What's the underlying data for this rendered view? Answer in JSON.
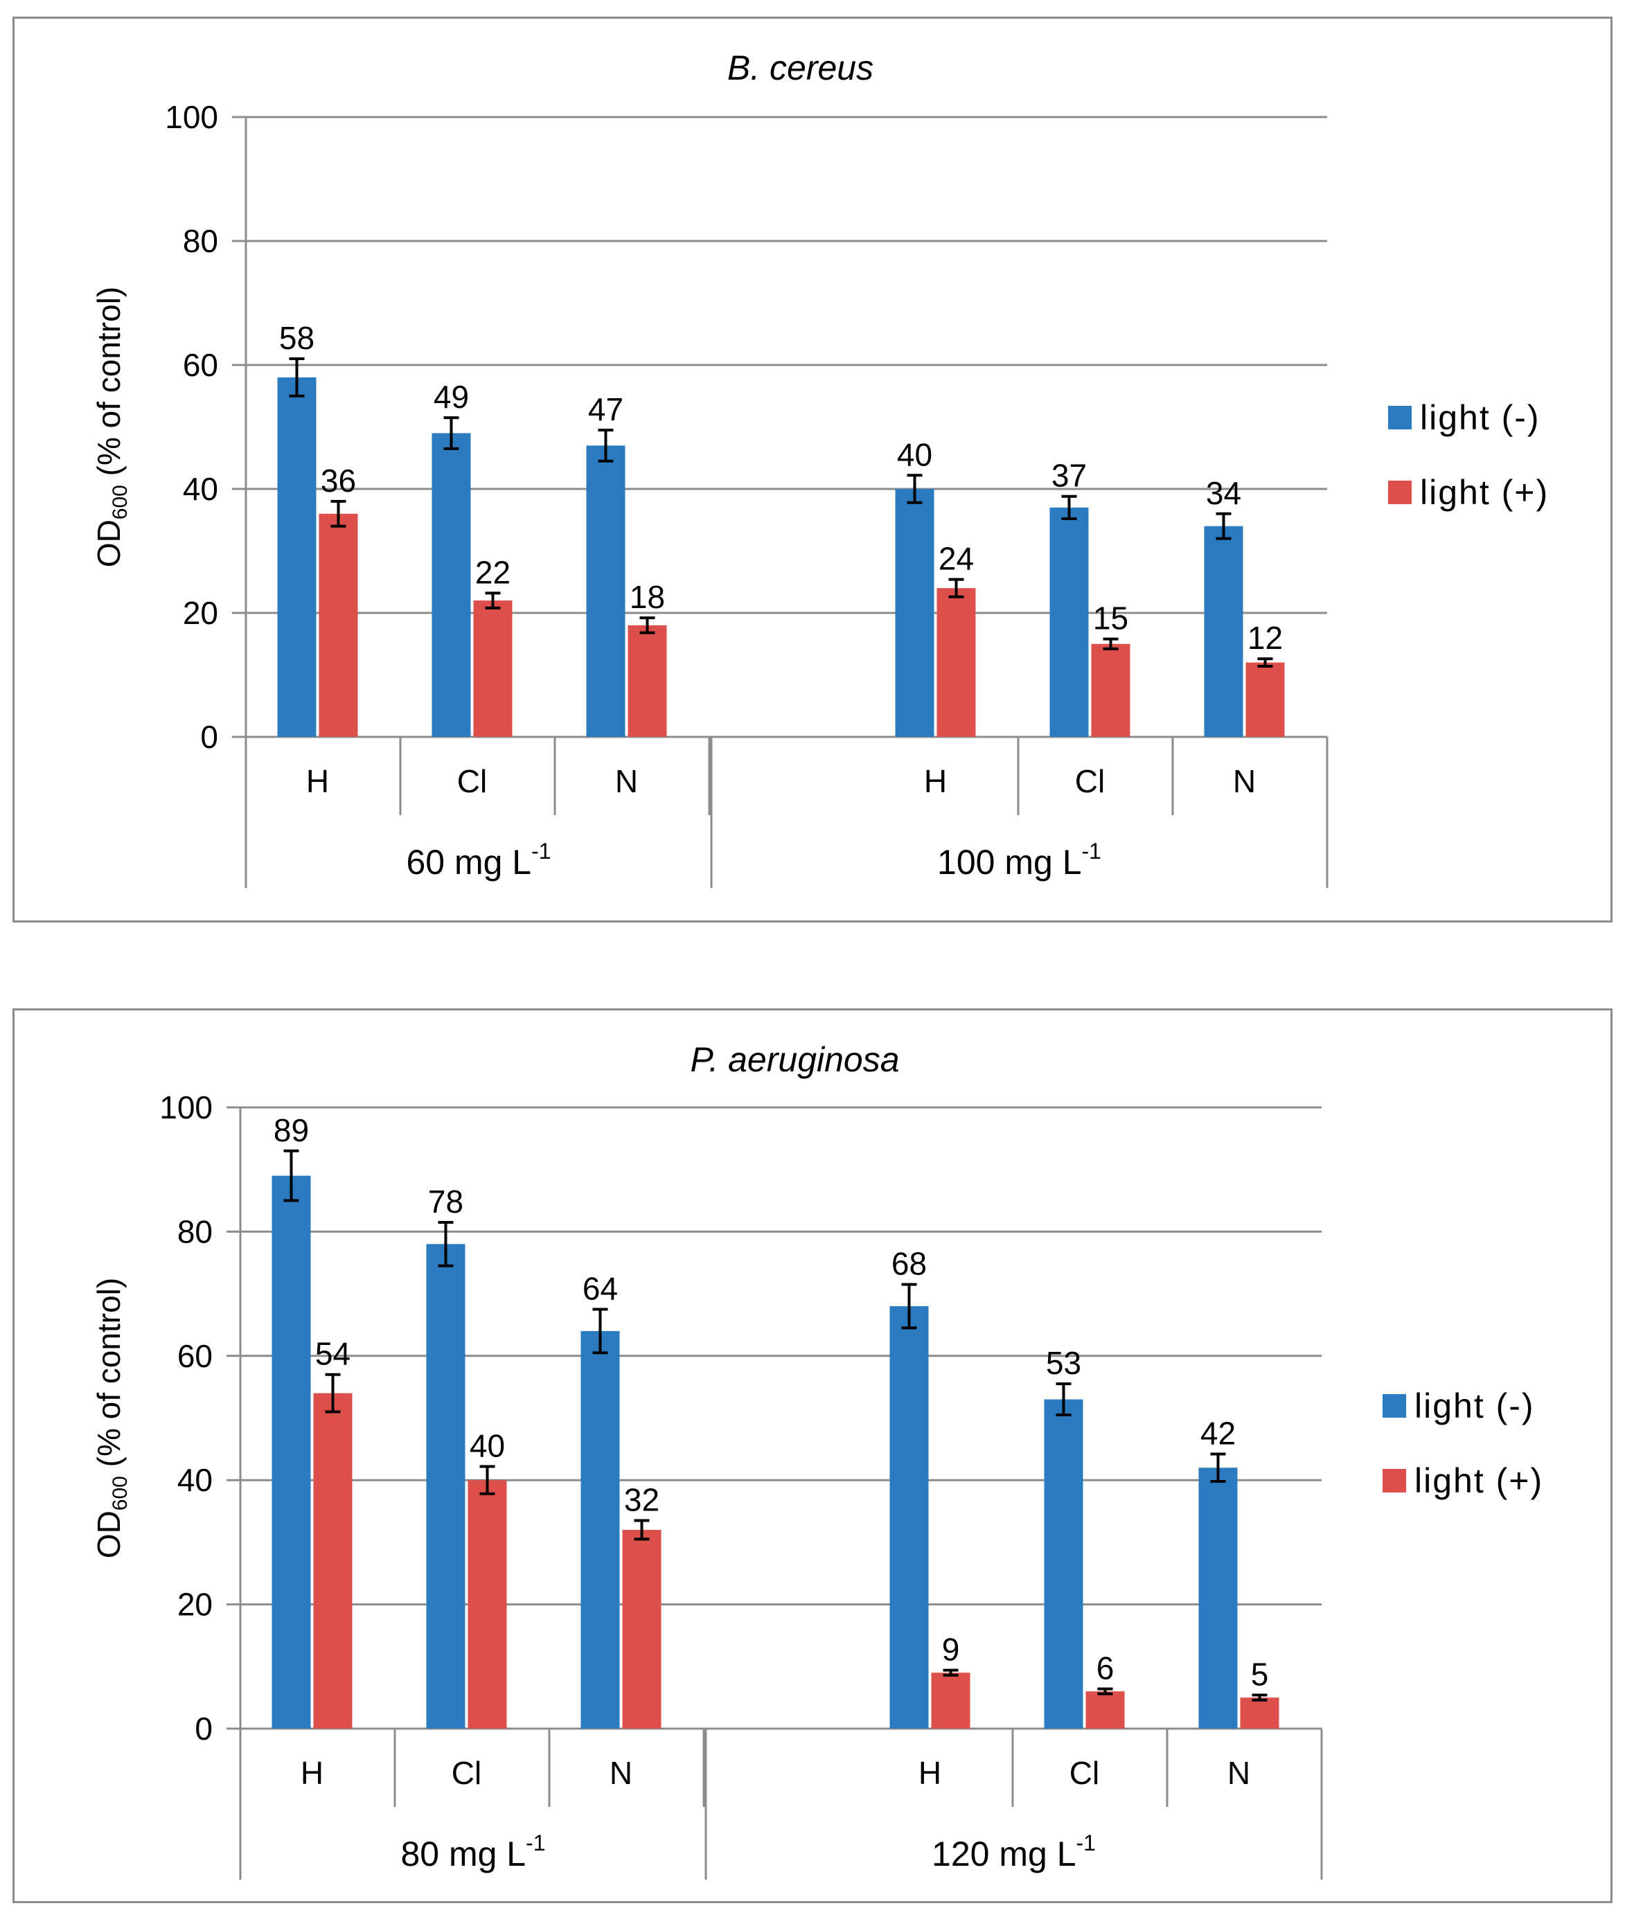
{
  "chart_data": [
    {
      "type": "bar",
      "title": "B. cereus",
      "ylabel_main": "OD",
      "ylabel_sub": "600",
      "ylabel_rest": " (% of control)",
      "ylim": [
        0,
        100
      ],
      "yticks": [
        0,
        20,
        40,
        60,
        80,
        100
      ],
      "groups": [
        {
          "label": "60 mg L",
          "sup": "-1",
          "categories": [
            "H",
            "Cl",
            "N"
          ]
        },
        {
          "label": "100 mg L",
          "sup": "-1",
          "categories": [
            "H",
            "Cl",
            "N"
          ]
        }
      ],
      "series": [
        {
          "name": "light (-)",
          "color": "#2B7BC0",
          "values": [
            58,
            49,
            47,
            40,
            37,
            34
          ],
          "errors": [
            3,
            2.5,
            2.5,
            2.2,
            1.8,
            2
          ]
        },
        {
          "name": "light (+)",
          "color": "#DD4F4A",
          "values": [
            36,
            22,
            18,
            24,
            15,
            12
          ],
          "errors": [
            2,
            1.2,
            1.2,
            1.4,
            0.8,
            0.6
          ]
        }
      ],
      "legend_position": "right"
    },
    {
      "type": "bar",
      "title": "P. aeruginosa",
      "ylabel_main": "OD",
      "ylabel_sub": "600",
      "ylabel_rest": " (% of control)",
      "ylim": [
        0,
        100
      ],
      "yticks": [
        0,
        20,
        40,
        60,
        80,
        100
      ],
      "groups": [
        {
          "label": "80 mg L",
          "sup": "-1",
          "categories": [
            "H",
            "Cl",
            "N"
          ]
        },
        {
          "label": "120 mg L",
          "sup": "-1",
          "categories": [
            "H",
            "Cl",
            "N"
          ]
        }
      ],
      "series": [
        {
          "name": "light (-)",
          "color": "#2B7BC0",
          "values": [
            89,
            78,
            64,
            68,
            53,
            42
          ],
          "errors": [
            4,
            3.5,
            3.5,
            3.5,
            2.5,
            2.2
          ]
        },
        {
          "name": "light (+)",
          "color": "#DD4F4A",
          "values": [
            54,
            40,
            32,
            9,
            6,
            5
          ],
          "errors": [
            3,
            2.2,
            1.5,
            0.4,
            0.4,
            0.4
          ]
        }
      ],
      "legend_position": "right"
    }
  ]
}
